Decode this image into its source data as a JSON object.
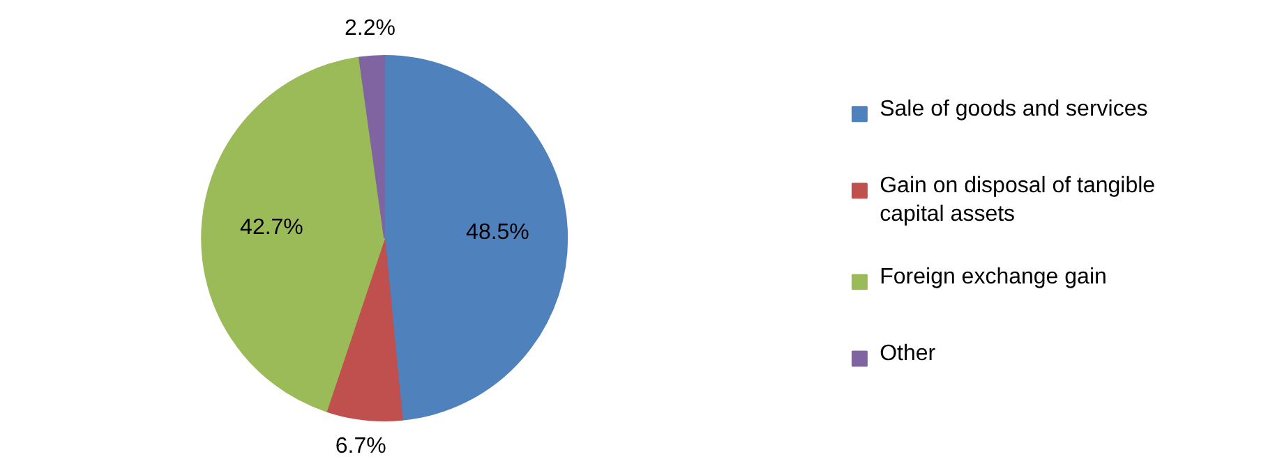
{
  "chart_data": {
    "type": "pie",
    "categories": [
      "Sale of goods and services",
      "Gain on disposal of tangible capital assets",
      "Foreign exchange gain",
      "Other"
    ],
    "values": [
      48.5,
      6.7,
      42.7,
      2.2
    ],
    "colors": [
      "#4f81bd",
      "#c0504d",
      "#9bbb59",
      "#8064a2"
    ],
    "value_labels": [
      "48.5%",
      "6.7%",
      "42.7%",
      "2.2%"
    ],
    "legend": "right"
  }
}
